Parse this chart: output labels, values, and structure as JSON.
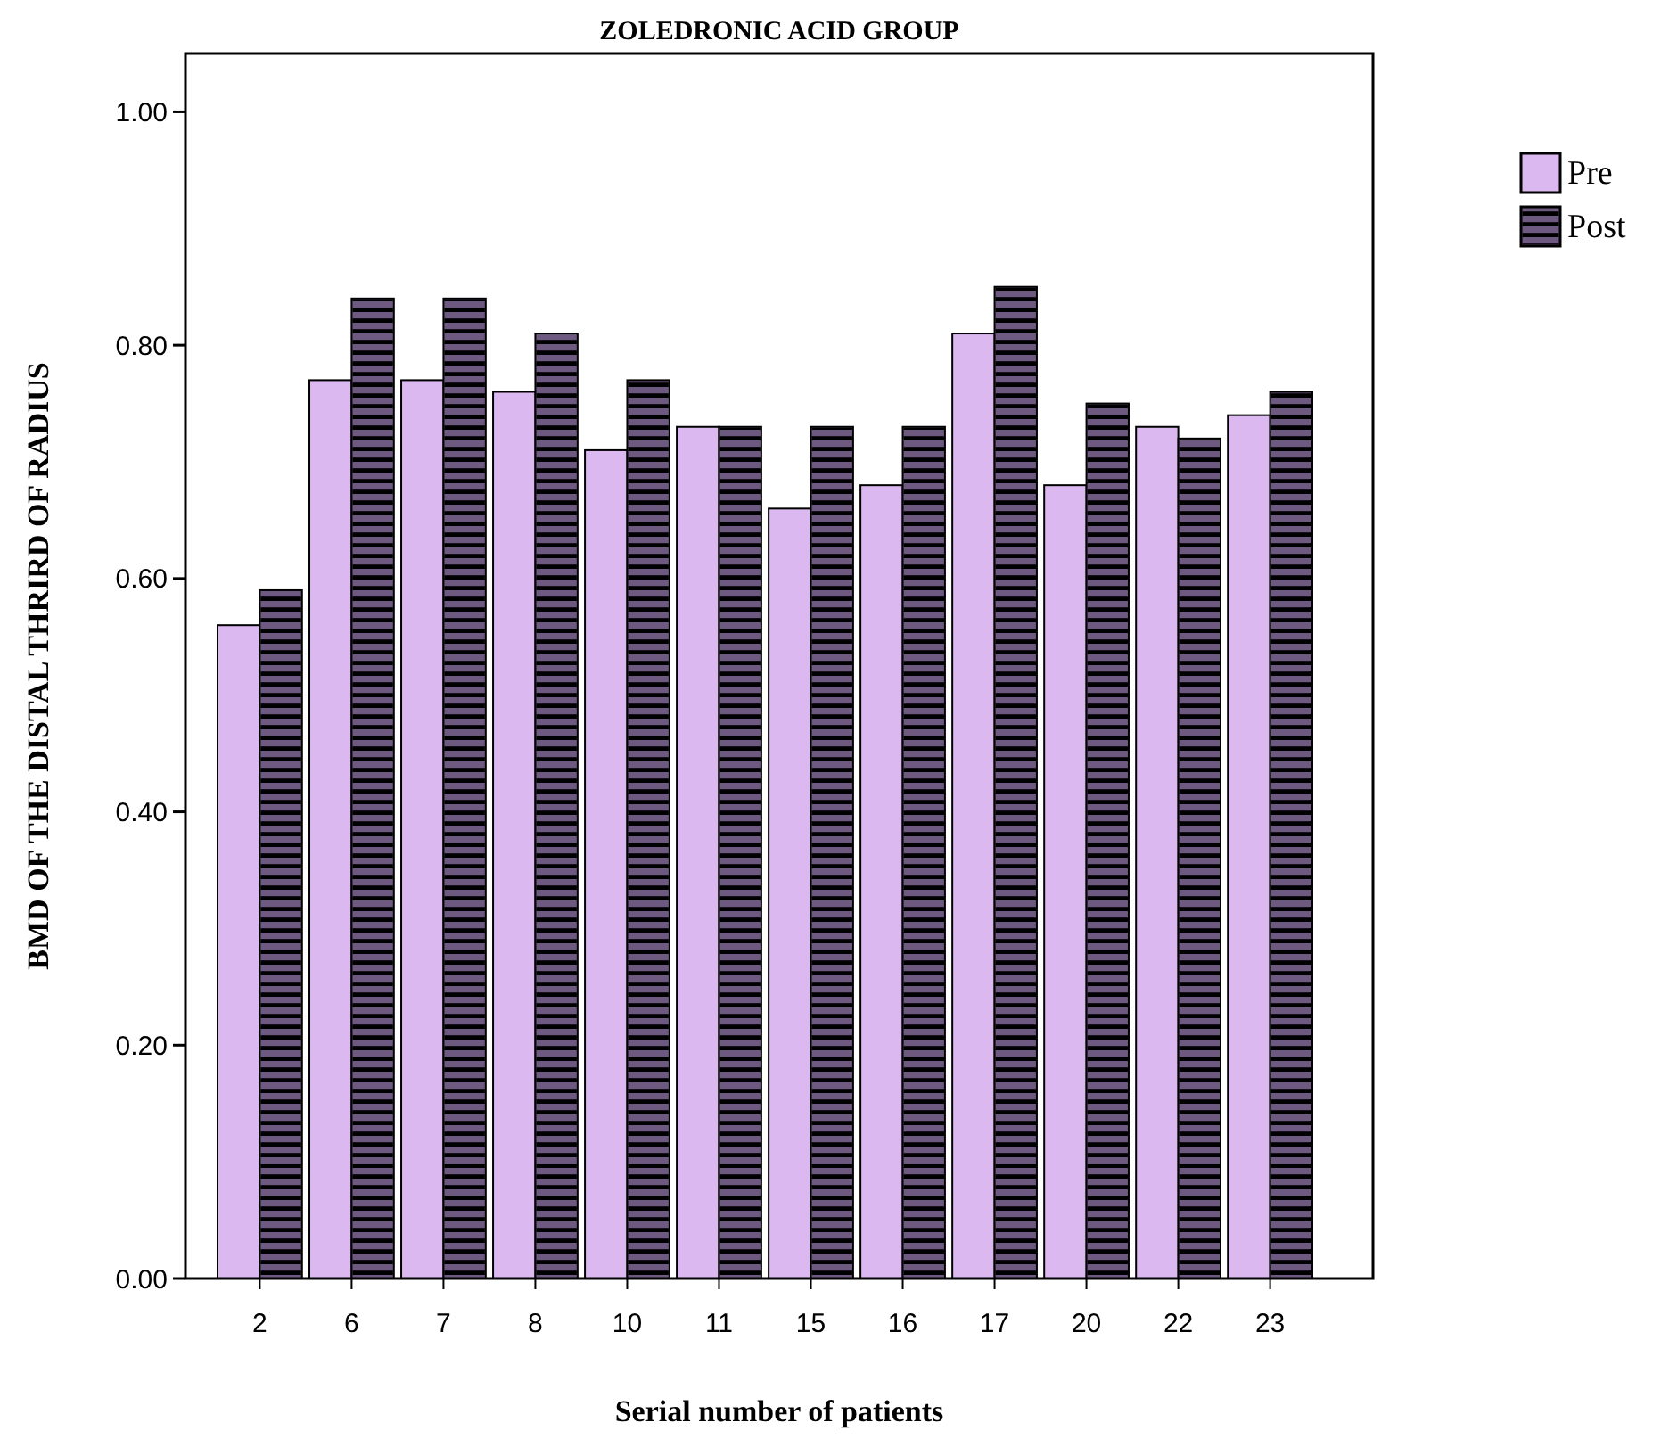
{
  "chart_data": {
    "type": "bar",
    "title": "ZOLEDRONIC ACID GROUP",
    "xlabel": "Serial number of patients",
    "ylabel": "BMD OF THE DISTAL THRIRD OF RADIUS",
    "categories": [
      "2",
      "6",
      "7",
      "8",
      "10",
      "11",
      "15",
      "16",
      "17",
      "20",
      "22",
      "23"
    ],
    "series": [
      {
        "name": "Pre",
        "color": "#dcb8f0",
        "values": [
          0.56,
          0.77,
          0.77,
          0.76,
          0.71,
          0.73,
          0.66,
          0.68,
          0.81,
          0.68,
          0.73,
          0.74
        ]
      },
      {
        "name": "Post",
        "color": "#6e5a80",
        "values": [
          0.59,
          0.84,
          0.84,
          0.81,
          0.77,
          0.73,
          0.73,
          0.73,
          0.85,
          0.75,
          0.72,
          0.76
        ]
      }
    ],
    "ylim": [
      0,
      1.05
    ],
    "yticks": [
      {
        "value": 0,
        "label": "0.00"
      },
      {
        "value": 0.2,
        "label": "0.20"
      },
      {
        "value": 0.4,
        "label": "0.40"
      },
      {
        "value": 0.6,
        "label": "0.60"
      },
      {
        "value": 0.8,
        "label": "0.80"
      },
      {
        "value": 1,
        "label": "1.00"
      }
    ],
    "grid": false,
    "legend": "top right"
  }
}
